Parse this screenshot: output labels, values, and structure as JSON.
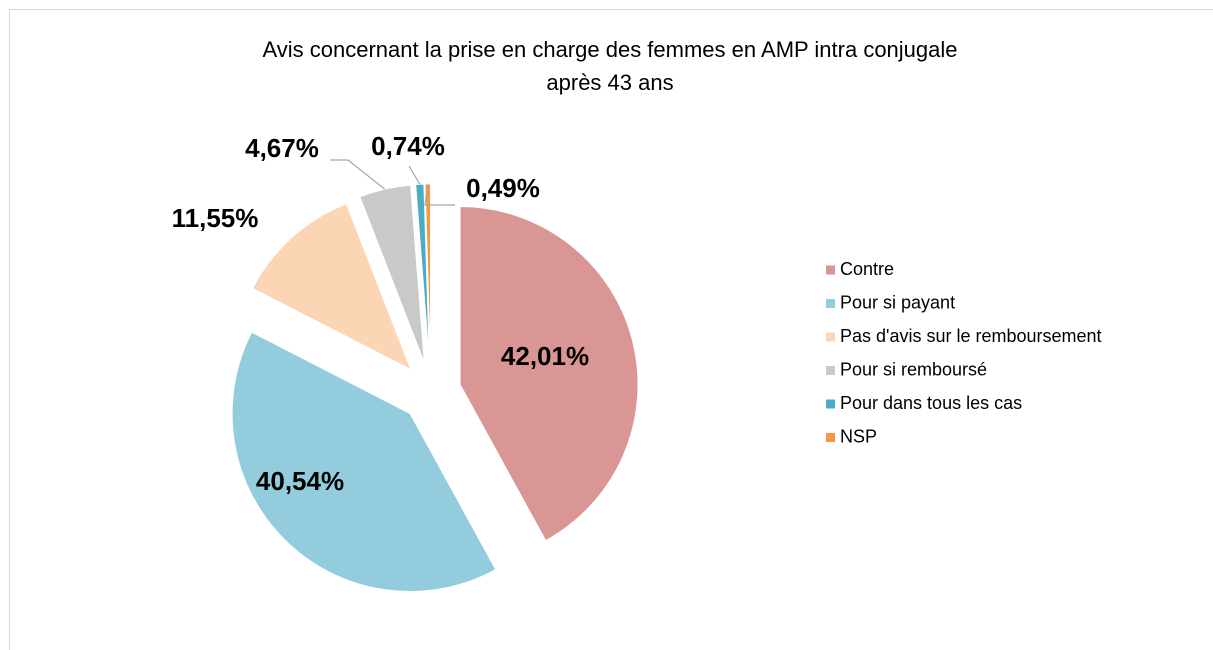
{
  "chart_data": {
    "type": "pie",
    "title": [
      "Avis concernant la prise en charge des femmes en AMP intra conjugale",
      "après 43 ans"
    ],
    "categories": [
      "Contre",
      "Pour si payant",
      "Pas d'avis sur le remboursement",
      "Pour si remboursé",
      "Pour dans tous les cas",
      "NSP"
    ],
    "values": [
      42.01,
      40.54,
      11.55,
      4.67,
      0.74,
      0.49
    ],
    "value_labels": [
      "42,01%",
      "40,54%",
      "11,55%",
      "4,67%",
      "0,74%",
      "0,49%"
    ],
    "colors": [
      "#d99694",
      "#93cddd",
      "#fcd5b5",
      "#c9c9c9",
      "#4bacc6",
      "#f79646"
    ],
    "legend": "right"
  }
}
